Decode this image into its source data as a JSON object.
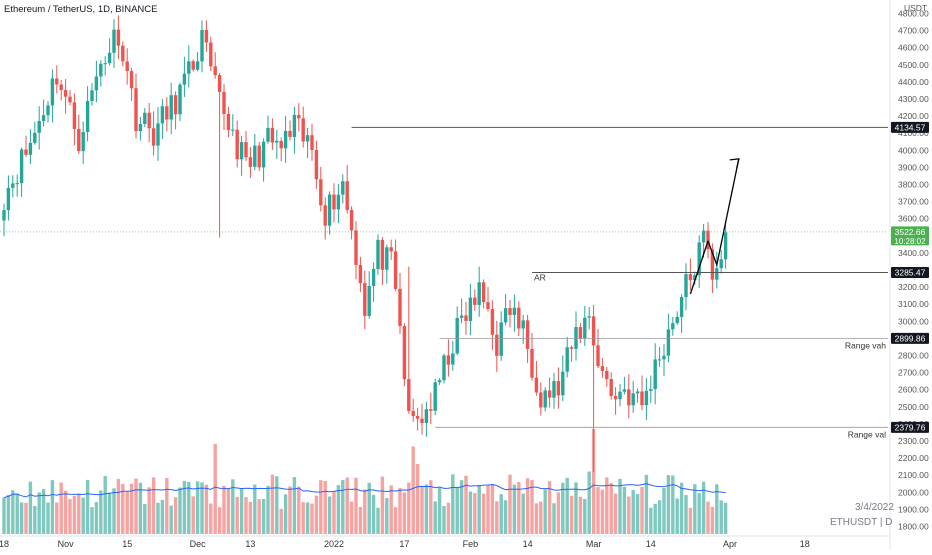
{
  "header": {
    "symbol_title": "Ethereum / TetherUS, 1D, BINANCE"
  },
  "footer": {
    "date_stamp": "3/4/2022",
    "ticker": "ETHUSDT | D"
  },
  "colors": {
    "up": "#26a69a",
    "down": "#ef5350",
    "up_volume": "#7fc8c0",
    "down_volume": "#f4a3a1",
    "volume_ma": "#2962ff",
    "price_line": "#4caf50"
  },
  "chart_data": {
    "type": "candlestick",
    "title": "Ethereum / TetherUS, 1D, BINANCE",
    "y_axis": {
      "unit": "USDT",
      "range": [
        1750,
        4850
      ],
      "ticks": [
        1800,
        1900,
        2000,
        2100,
        2200,
        2300,
        2400,
        2500,
        2600,
        2700,
        2800,
        2900,
        3000,
        3100,
        3200,
        3300,
        3400,
        3500,
        3600,
        3700,
        3800,
        3900,
        4000,
        4100,
        4200,
        4300,
        4400,
        4500,
        4600,
        4700,
        4800
      ],
      "tick_labels": [
        "1800.00",
        "1900.00",
        "2000.00",
        "2100.00",
        "2200.00",
        "2300.00",
        "2400.00",
        "2500.00",
        "2600.00",
        "2700.00",
        "2800.00",
        "2900.00",
        "3000.00",
        "3100.00",
        "3200.00",
        "3300.00",
        "3400.00",
        "3500.00",
        "3600.00",
        "3700.00",
        "3800.00",
        "3900.00",
        "4000.00",
        "4100.00",
        "4200.00",
        "4300.00",
        "4400.00",
        "4500.00",
        "4600.00",
        "4700.00",
        "4800.00"
      ]
    },
    "x_axis": {
      "start_date": "2021-10-18",
      "days": 187,
      "labels": [
        {
          "day": 0,
          "text": "18"
        },
        {
          "day": 14,
          "text": "Nov"
        },
        {
          "day": 28,
          "text": "15"
        },
        {
          "day": 44,
          "text": "Dec"
        },
        {
          "day": 56,
          "text": "13"
        },
        {
          "day": 75,
          "text": "2022"
        },
        {
          "day": 91,
          "text": "17"
        },
        {
          "day": 106,
          "text": "Feb"
        },
        {
          "day": 119,
          "text": "14"
        },
        {
          "day": 134,
          "text": "Mar"
        },
        {
          "day": 147,
          "text": "14"
        },
        {
          "day": 165,
          "text": "Apr"
        },
        {
          "day": 182,
          "text": "18"
        }
      ]
    },
    "price_keypoints": [
      [
        0,
        3740
      ],
      [
        6,
        4040
      ],
      [
        12,
        4450
      ],
      [
        17,
        4070
      ],
      [
        22,
        4510
      ],
      [
        26,
        4700
      ],
      [
        30,
        4200
      ],
      [
        34,
        4100
      ],
      [
        38,
        4250
      ],
      [
        42,
        4440
      ],
      [
        45,
        4650
      ],
      [
        48,
        4350
      ],
      [
        52,
        4100
      ],
      [
        55,
        3900
      ],
      [
        60,
        4050
      ],
      [
        63,
        4010
      ],
      [
        66,
        4130
      ],
      [
        70,
        4000
      ],
      [
        73,
        3640
      ],
      [
        77,
        3810
      ],
      [
        80,
        3400
      ],
      [
        82,
        3090
      ],
      [
        85,
        3400
      ],
      [
        88,
        3320
      ],
      [
        90,
        2960
      ],
      [
        92,
        2410
      ],
      [
        95,
        2440
      ],
      [
        98,
        2560
      ],
      [
        101,
        2810
      ],
      [
        104,
        3000
      ],
      [
        108,
        3160
      ],
      [
        110,
        3070
      ],
      [
        112,
        2870
      ],
      [
        115,
        3080
      ],
      [
        118,
        2940
      ],
      [
        122,
        2580
      ],
      [
        126,
        2600
      ],
      [
        130,
        2920
      ],
      [
        133,
        3030
      ],
      [
        135,
        2780
      ],
      [
        138,
        2570
      ],
      [
        141,
        2600
      ],
      [
        145,
        2510
      ],
      [
        149,
        2800
      ],
      [
        153,
        3080
      ],
      [
        156,
        3260
      ],
      [
        159,
        3470
      ],
      [
        161,
        3290
      ],
      [
        163,
        3410
      ],
      [
        164,
        3520
      ]
    ],
    "volume_scale": [
      0,
      220
    ],
    "last_price": 3522.66,
    "annotations": {
      "price_labels": [
        {
          "value": 4134.57,
          "text": "4134.57"
        },
        {
          "value": 3522.66,
          "text": "3522.66",
          "sub": "10:28:02"
        },
        {
          "value": 3285.47,
          "text": "3285.47"
        },
        {
          "value": 2899.86,
          "text": "2899.86",
          "note": "Range vah"
        },
        {
          "value": 2379.76,
          "text": "2379.76",
          "note": "Range val"
        }
      ],
      "ar_label": "AR",
      "ar_value": 3285.47,
      "projection_path": [
        [
          160,
          3470
        ],
        [
          162,
          3330
        ],
        [
          167,
          3950
        ]
      ]
    }
  }
}
